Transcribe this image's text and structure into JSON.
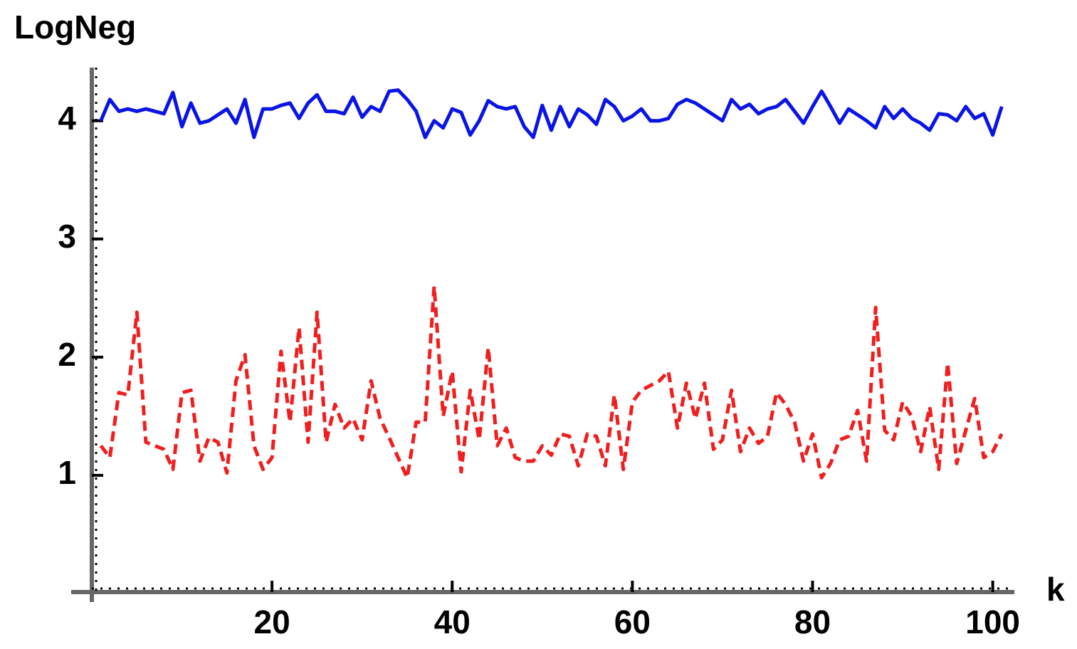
{
  "chart_data": {
    "type": "line",
    "y_label": "LogNeg",
    "x_label": "k",
    "xlim": [
      0,
      102.4
    ],
    "ylim": [
      0,
      4.45
    ],
    "xticks": [
      20,
      40,
      60,
      80,
      100
    ],
    "yticks": [
      1,
      2,
      3,
      4
    ],
    "x": [
      1,
      2,
      3,
      4,
      5,
      6,
      7,
      8,
      9,
      10,
      11,
      12,
      13,
      14,
      15,
      16,
      17,
      18,
      19,
      20,
      21,
      22,
      23,
      24,
      25,
      26,
      27,
      28,
      29,
      30,
      31,
      32,
      33,
      34,
      35,
      36,
      37,
      38,
      39,
      40,
      41,
      42,
      43,
      44,
      45,
      46,
      47,
      48,
      49,
      50,
      51,
      52,
      53,
      54,
      55,
      56,
      57,
      58,
      59,
      60,
      61,
      62,
      63,
      64,
      65,
      66,
      67,
      68,
      69,
      70,
      71,
      72,
      73,
      74,
      75,
      76,
      77,
      78,
      79,
      80,
      81,
      82,
      83,
      84,
      85,
      86,
      87,
      88,
      89,
      90,
      91,
      92,
      93,
      94,
      95,
      96,
      97,
      98,
      99,
      100,
      101
    ],
    "series": [
      {
        "color": "#0a14e6",
        "dash": false,
        "values": [
          4.0,
          4.18,
          4.08,
          4.1,
          4.08,
          4.1,
          4.08,
          4.06,
          4.24,
          3.95,
          4.15,
          3.98,
          4.0,
          4.05,
          4.1,
          3.98,
          4.18,
          3.86,
          4.1,
          4.1,
          4.13,
          4.15,
          4.02,
          4.15,
          4.22,
          4.08,
          4.08,
          4.06,
          4.2,
          4.03,
          4.12,
          4.08,
          4.25,
          4.26,
          4.18,
          4.08,
          3.86,
          4.0,
          3.94,
          4.1,
          4.07,
          3.88,
          4.0,
          4.17,
          4.12,
          4.1,
          4.12,
          3.95,
          3.86,
          4.13,
          3.92,
          4.12,
          3.95,
          4.1,
          4.05,
          3.97,
          4.18,
          4.12,
          4.0,
          4.04,
          4.1,
          4.0,
          4.0,
          4.02,
          4.14,
          4.18,
          4.15,
          4.1,
          4.05,
          4.0,
          4.18,
          4.1,
          4.14,
          4.06,
          4.1,
          4.12,
          4.18,
          4.08,
          3.98,
          4.12,
          4.25,
          4.12,
          3.98,
          4.1,
          4.05,
          4.0,
          3.94,
          4.12,
          4.02,
          4.1,
          4.02,
          3.98,
          3.92,
          4.06,
          4.05,
          4.0,
          4.12,
          4.02,
          4.06,
          3.88,
          4.12
        ]
      },
      {
        "color": "#f01e1e",
        "dash": true,
        "values": [
          1.25,
          1.15,
          1.7,
          1.68,
          2.38,
          1.28,
          1.25,
          1.22,
          1.05,
          1.7,
          1.72,
          1.12,
          1.32,
          1.28,
          1.02,
          1.8,
          2.02,
          1.25,
          1.05,
          1.15,
          2.05,
          1.45,
          2.25,
          1.28,
          2.38,
          1.28,
          1.6,
          1.4,
          1.48,
          1.3,
          1.8,
          1.48,
          1.32,
          1.15,
          0.98,
          1.45,
          1.45,
          2.6,
          1.5,
          1.88,
          1.03,
          1.72,
          1.3,
          2.08,
          1.25,
          1.4,
          1.15,
          1.12,
          1.12,
          1.25,
          1.17,
          1.35,
          1.33,
          1.08,
          1.35,
          1.33,
          1.08,
          1.68,
          1.05,
          1.62,
          1.72,
          1.76,
          1.8,
          1.88,
          1.4,
          1.78,
          1.48,
          1.78,
          1.22,
          1.3,
          1.72,
          1.2,
          1.4,
          1.27,
          1.33,
          1.7,
          1.6,
          1.45,
          1.12,
          1.35,
          0.98,
          1.1,
          1.3,
          1.33,
          1.55,
          1.12,
          2.42,
          1.38,
          1.3,
          1.62,
          1.5,
          1.2,
          1.58,
          1.05,
          1.95,
          1.1,
          1.38,
          1.65,
          1.15,
          1.2,
          1.35
        ]
      }
    ]
  }
}
